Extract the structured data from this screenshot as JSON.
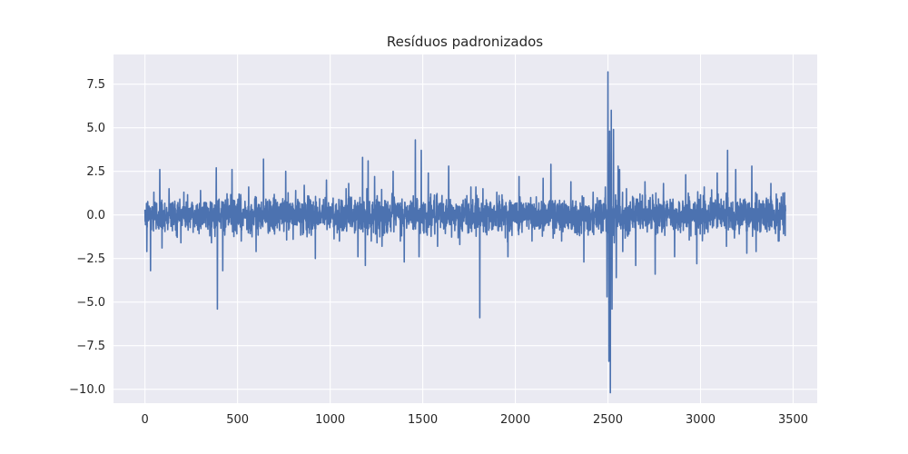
{
  "chart_data": {
    "type": "line",
    "title": "Resíduos padronizados",
    "xlabel": "",
    "ylabel": "",
    "xlim": [
      -170,
      3630
    ],
    "ylim": [
      -10.8,
      9.2
    ],
    "xticks": [
      0,
      500,
      1000,
      1500,
      2000,
      2500,
      3000,
      3500
    ],
    "xtick_labels": [
      "0",
      "500",
      "1000",
      "1500",
      "2000",
      "2500",
      "3000",
      "3500"
    ],
    "yticks": [
      7.5,
      5.0,
      2.5,
      0.0,
      -2.5,
      -5.0,
      -7.5,
      -10.0
    ],
    "ytick_labels": [
      "7.5",
      "5.0",
      "2.5",
      "0.0",
      "−2.5",
      "−5.0",
      "−7.5",
      "−10.0"
    ],
    "grid": true,
    "style": "seaborn-darkgrid",
    "colors": {
      "line": "#4c72b0",
      "plot_bg": "#eaeaf2",
      "grid": "#ffffff",
      "text": "#262626"
    },
    "series": [
      {
        "n_points": 3460,
        "x_range": [
          0,
          3459
        ],
        "typical_band": [
          -1.2,
          1.2
        ],
        "x": [
          0,
          10,
          22,
          30,
          48,
          60,
          80,
          92,
          130,
          170,
          210,
          260,
          300,
          350,
          385,
          391,
          400,
          420,
          470,
          520,
          560,
          600,
          640,
          700,
          760,
          800,
          860,
          920,
          980,
          1050,
          1100,
          1150,
          1175,
          1190,
          1205,
          1222,
          1240,
          1280,
          1340,
          1400,
          1460,
          1480,
          1492,
          1518,
          1530,
          1580,
          1640,
          1700,
          1760,
          1808,
          1825,
          1840,
          1900,
          1960,
          2020,
          2090,
          2150,
          2192,
          2250,
          2300,
          2370,
          2420,
          2470,
          2495,
          2500,
          2505,
          2509,
          2513,
          2518,
          2522,
          2530,
          2545,
          2555,
          2563,
          2580,
          2600,
          2650,
          2700,
          2755,
          2800,
          2860,
          2920,
          2980,
          3020,
          3090,
          3140,
          3146,
          3190,
          3250,
          3277,
          3300,
          3380,
          3420,
          3459
        ],
        "y": [
          0.3,
          -2.1,
          0.5,
          -3.2,
          1.3,
          -0.8,
          2.6,
          -1.9,
          1.5,
          -1.2,
          1.3,
          -1.0,
          1.4,
          -1.2,
          2.7,
          -5.4,
          0.9,
          -3.2,
          2.6,
          -1.5,
          1.6,
          -2.1,
          3.2,
          -1.1,
          2.5,
          -1.4,
          1.7,
          -2.5,
          2.0,
          -1.5,
          1.8,
          -2.4,
          3.3,
          -2.9,
          3.1,
          -1.5,
          2.2,
          -1.8,
          2.5,
          -2.7,
          4.3,
          -2.4,
          3.7,
          -1.0,
          2.4,
          -1.8,
          2.8,
          -1.7,
          1.6,
          -5.9,
          1.5,
          -1.0,
          1.3,
          -2.4,
          2.2,
          -1.5,
          2.1,
          2.9,
          -1.5,
          1.9,
          -2.7,
          1.3,
          -0.9,
          -4.7,
          8.2,
          -8.4,
          4.8,
          -10.2,
          6.0,
          -5.4,
          4.9,
          -3.6,
          2.8,
          2.6,
          -2.1,
          1.5,
          -2.9,
          1.9,
          -3.4,
          1.8,
          -2.4,
          2.3,
          -2.8,
          1.6,
          2.4,
          -1.8,
          3.7,
          2.6,
          -2.2,
          2.8,
          -2.1,
          1.8,
          -1.5,
          0.2
        ]
      }
    ]
  }
}
